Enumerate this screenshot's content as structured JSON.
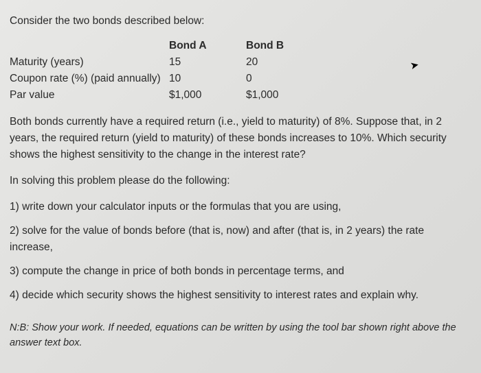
{
  "intro": "Consider the two bonds described below:",
  "table": {
    "header_a": "Bond A",
    "header_b": "Bond B",
    "rows": [
      {
        "label": "Maturity (years)",
        "a": "15",
        "b": "20"
      },
      {
        "label": "Coupon rate (%) (paid annually)",
        "a": "10",
        "b": "0"
      },
      {
        "label": "Par value",
        "a": "$1,000",
        "b": "$1,000"
      }
    ]
  },
  "para1": "Both bonds currently have a required return (i.e., yield to maturity) of 8%. Suppose that, in 2 years, the required return (yield to maturity) of these bonds increases to 10%. Which security shows the highest sensitivity to the change in the interest rate?",
  "para2": "In solving this problem please do the following:",
  "items": [
    "1) write down your calculator inputs or the formulas that you are using,",
    "2) solve for the value of bonds before (that is, now) and after (that is, in 2 years) the rate increase,",
    "3) compute the change in price of both bonds in percentage terms, and",
    "4) decide which security shows the highest sensitivity to interest rates and explain why."
  ],
  "note": "N:B: Show your work. If needed, equations can be written by using the tool bar shown right above the answer text box.",
  "colors": {
    "text": "#2a2a2a",
    "bg_light": "#e8e8e6",
    "bg_dark": "#d8d8d6"
  },
  "fontsize_body": 15.5,
  "fontsize_note": 14.5
}
